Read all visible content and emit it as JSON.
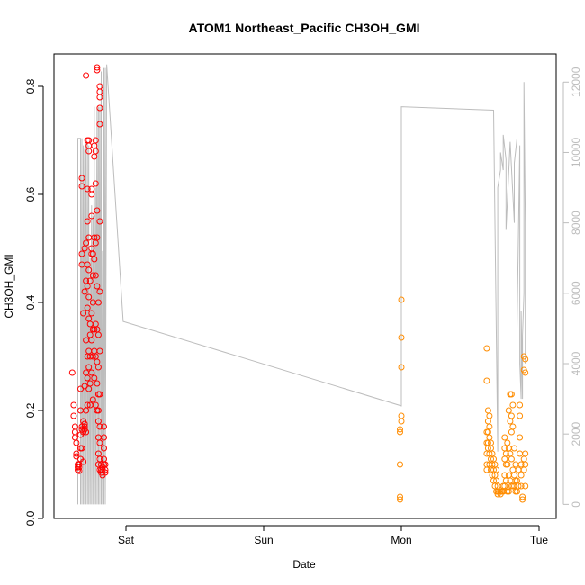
{
  "chart_data": {
    "type": "scatter",
    "title": "ATOM1 Northeast_Pacific CH3OH_GMI",
    "xlabel": "Date",
    "ylabel": "CH3OH_GMI",
    "x_ticks": [
      "Sat",
      "Sun",
      "Mon",
      "Tue"
    ],
    "ylim": [
      0,
      0.86
    ],
    "y_ticks": [
      0.0,
      0.2,
      0.4,
      0.6,
      0.8
    ],
    "y2lim": [
      -400,
      12800
    ],
    "y2_ticks": [
      0,
      2000,
      4000,
      6000,
      8000,
      10000,
      12000
    ],
    "grid": false,
    "colors": {
      "series_a": "#ff0000",
      "series_b": "#ff8c00",
      "altitude": "#bdbdbd"
    },
    "series": [
      {
        "color": "#ff0000",
        "points": [
          [
            -0.39,
            0.27
          ],
          [
            -0.38,
            0.21
          ],
          [
            -0.38,
            0.19
          ],
          [
            -0.37,
            0.17
          ],
          [
            -0.37,
            0.16
          ],
          [
            -0.37,
            0.15
          ],
          [
            -0.36,
            0.14
          ],
          [
            -0.36,
            0.12
          ],
          [
            -0.36,
            0.115
          ],
          [
            -0.35,
            0.1
          ],
          [
            -0.35,
            0.095
          ],
          [
            -0.35,
            0.09
          ],
          [
            -0.34,
            0.088
          ],
          [
            -0.34,
            0.095
          ],
          [
            -0.34,
            0.1
          ],
          [
            -0.33,
            0.11
          ],
          [
            -0.33,
            0.13
          ],
          [
            -0.33,
            0.155
          ],
          [
            -0.33,
            0.2
          ],
          [
            -0.33,
            0.24
          ],
          [
            -0.32,
            0.17
          ],
          [
            -0.32,
            0.165
          ],
          [
            -0.32,
            0.13
          ],
          [
            -0.31,
            0.38
          ],
          [
            -0.32,
            0.49
          ],
          [
            -0.32,
            0.47
          ],
          [
            -0.32,
            0.63
          ],
          [
            -0.32,
            0.615
          ],
          [
            -0.31,
            0.105
          ],
          [
            -0.31,
            0.16
          ],
          [
            -0.31,
            0.18
          ],
          [
            -0.3,
            0.165
          ],
          [
            -0.3,
            0.17
          ],
          [
            -0.3,
            0.175
          ],
          [
            -0.29,
            0.82
          ],
          [
            -0.3,
            0.245
          ],
          [
            -0.3,
            0.42
          ],
          [
            -0.3,
            0.5
          ],
          [
            -0.29,
            0.44
          ],
          [
            -0.29,
            0.51
          ],
          [
            -0.29,
            0.33
          ],
          [
            -0.29,
            0.27
          ],
          [
            -0.29,
            0.2
          ],
          [
            -0.29,
            0.16
          ],
          [
            -0.28,
            0.7
          ],
          [
            -0.28,
            0.61
          ],
          [
            -0.28,
            0.55
          ],
          [
            -0.28,
            0.47
          ],
          [
            -0.28,
            0.43
          ],
          [
            -0.28,
            0.39
          ],
          [
            -0.28,
            0.3
          ],
          [
            -0.28,
            0.26
          ],
          [
            -0.28,
            0.21
          ],
          [
            -0.27,
            0.7
          ],
          [
            -0.27,
            0.69
          ],
          [
            -0.27,
            0.68
          ],
          [
            -0.27,
            0.52
          ],
          [
            -0.27,
            0.46
          ],
          [
            -0.27,
            0.41
          ],
          [
            -0.27,
            0.37
          ],
          [
            -0.27,
            0.31
          ],
          [
            -0.27,
            0.28
          ],
          [
            -0.27,
            0.24
          ],
          [
            -0.26,
            0.44
          ],
          [
            -0.26,
            0.36
          ],
          [
            -0.26,
            0.34
          ],
          [
            -0.26,
            0.3
          ],
          [
            -0.26,
            0.25
          ],
          [
            -0.26,
            0.21
          ],
          [
            -0.25,
            0.61
          ],
          [
            -0.25,
            0.6
          ],
          [
            -0.25,
            0.56
          ],
          [
            -0.25,
            0.5
          ],
          [
            -0.25,
            0.49
          ],
          [
            -0.25,
            0.38
          ],
          [
            -0.25,
            0.33
          ],
          [
            -0.25,
            0.27
          ],
          [
            -0.24,
            0.49
          ],
          [
            -0.24,
            0.45
          ],
          [
            -0.24,
            0.4
          ],
          [
            -0.24,
            0.35
          ],
          [
            -0.24,
            0.3
          ],
          [
            -0.24,
            0.22
          ],
          [
            -0.23,
            0.69
          ],
          [
            -0.23,
            0.67
          ],
          [
            -0.23,
            0.52
          ],
          [
            -0.23,
            0.48
          ],
          [
            -0.23,
            0.35
          ],
          [
            -0.23,
            0.31
          ],
          [
            -0.23,
            0.26
          ],
          [
            -0.22,
            0.7
          ],
          [
            -0.22,
            0.68
          ],
          [
            -0.22,
            0.62
          ],
          [
            -0.22,
            0.51
          ],
          [
            -0.22,
            0.45
          ],
          [
            -0.22,
            0.36
          ],
          [
            -0.22,
            0.3
          ],
          [
            -0.22,
            0.21
          ],
          [
            -0.21,
            0.835
          ],
          [
            -0.21,
            0.83
          ],
          [
            -0.21,
            0.57
          ],
          [
            -0.21,
            0.52
          ],
          [
            -0.21,
            0.43
          ],
          [
            -0.21,
            0.35
          ],
          [
            -0.21,
            0.29
          ],
          [
            -0.21,
            0.25
          ],
          [
            -0.21,
            0.2
          ],
          [
            -0.2,
            0.4
          ],
          [
            -0.2,
            0.34
          ],
          [
            -0.2,
            0.28
          ],
          [
            -0.2,
            0.23
          ],
          [
            -0.2,
            0.2
          ],
          [
            -0.2,
            0.18
          ],
          [
            -0.2,
            0.15
          ],
          [
            -0.2,
            0.12
          ],
          [
            -0.2,
            0.1
          ],
          [
            -0.19,
            0.8
          ],
          [
            -0.19,
            0.79
          ],
          [
            -0.19,
            0.78
          ],
          [
            -0.19,
            0.76
          ],
          [
            -0.19,
            0.73
          ],
          [
            -0.19,
            0.55
          ],
          [
            -0.19,
            0.42
          ],
          [
            -0.19,
            0.31
          ],
          [
            -0.19,
            0.23
          ],
          [
            -0.19,
            0.17
          ],
          [
            -0.19,
            0.14
          ],
          [
            -0.19,
            0.11
          ],
          [
            -0.19,
            0.09
          ],
          [
            -0.18,
            0.1
          ],
          [
            -0.18,
            0.085
          ],
          [
            -0.18,
            0.09
          ],
          [
            -0.17,
            0.08
          ],
          [
            -0.17,
            0.09
          ],
          [
            -0.17,
            0.095
          ],
          [
            -0.16,
            0.1
          ],
          [
            -0.16,
            0.11
          ],
          [
            -0.16,
            0.13
          ],
          [
            -0.16,
            0.15
          ],
          [
            -0.16,
            0.17
          ],
          [
            -0.15,
            0.085
          ],
          [
            -0.15,
            0.09
          ],
          [
            -0.15,
            0.1
          ]
        ]
      },
      {
        "color": "#ff8c00",
        "points": [
          [
            2.0,
            0.405
          ],
          [
            2.0,
            0.335
          ],
          [
            2.0,
            0.28
          ],
          [
            2.0,
            0.19
          ],
          [
            2.0,
            0.18
          ],
          [
            1.99,
            0.165
          ],
          [
            1.99,
            0.16
          ],
          [
            1.99,
            0.1
          ],
          [
            1.99,
            0.04
          ],
          [
            1.99,
            0.035
          ],
          [
            2.62,
            0.315
          ],
          [
            2.62,
            0.255
          ],
          [
            2.62,
            0.16
          ],
          [
            2.62,
            0.14
          ],
          [
            2.62,
            0.12
          ],
          [
            2.62,
            0.1
          ],
          [
            2.62,
            0.09
          ],
          [
            2.63,
            0.2
          ],
          [
            2.63,
            0.18
          ],
          [
            2.63,
            0.16
          ],
          [
            2.63,
            0.14
          ],
          [
            2.63,
            0.13
          ],
          [
            2.64,
            0.19
          ],
          [
            2.64,
            0.17
          ],
          [
            2.64,
            0.15
          ],
          [
            2.64,
            0.12
          ],
          [
            2.64,
            0.1
          ],
          [
            2.65,
            0.14
          ],
          [
            2.65,
            0.13
          ],
          [
            2.65,
            0.11
          ],
          [
            2.65,
            0.09
          ],
          [
            2.66,
            0.12
          ],
          [
            2.66,
            0.1
          ],
          [
            2.66,
            0.08
          ],
          [
            2.67,
            0.11
          ],
          [
            2.67,
            0.09
          ],
          [
            2.67,
            0.07
          ],
          [
            2.68,
            0.1
          ],
          [
            2.68,
            0.08
          ],
          [
            2.68,
            0.06
          ],
          [
            2.69,
            0.09
          ],
          [
            2.69,
            0.07
          ],
          [
            2.69,
            0.05
          ],
          [
            2.7,
            0.06
          ],
          [
            2.7,
            0.05
          ],
          [
            2.7,
            0.045
          ],
          [
            2.71,
            0.05
          ],
          [
            2.72,
            0.045
          ],
          [
            2.72,
            0.05
          ],
          [
            2.73,
            0.05
          ],
          [
            2.74,
            0.06
          ],
          [
            2.74,
            0.05
          ],
          [
            2.75,
            0.15
          ],
          [
            2.75,
            0.13
          ],
          [
            2.75,
            0.11
          ],
          [
            2.75,
            0.08
          ],
          [
            2.75,
            0.06
          ],
          [
            2.76,
            0.12
          ],
          [
            2.76,
            0.1
          ],
          [
            2.76,
            0.07
          ],
          [
            2.77,
            0.14
          ],
          [
            2.77,
            0.1
          ],
          [
            2.77,
            0.05
          ],
          [
            2.78,
            0.2
          ],
          [
            2.78,
            0.13
          ],
          [
            2.78,
            0.08
          ],
          [
            2.78,
            0.05
          ],
          [
            2.79,
            0.23
          ],
          [
            2.79,
            0.18
          ],
          [
            2.79,
            0.12
          ],
          [
            2.79,
            0.07
          ],
          [
            2.8,
            0.23
          ],
          [
            2.8,
            0.19
          ],
          [
            2.8,
            0.16
          ],
          [
            2.8,
            0.11
          ],
          [
            2.8,
            0.06
          ],
          [
            2.81,
            0.21
          ],
          [
            2.81,
            0.17
          ],
          [
            2.81,
            0.09
          ],
          [
            2.81,
            0.06
          ],
          [
            2.82,
            0.13
          ],
          [
            2.82,
            0.08
          ],
          [
            2.82,
            0.06
          ],
          [
            2.83,
            0.1
          ],
          [
            2.83,
            0.07
          ],
          [
            2.83,
            0.05
          ],
          [
            2.84,
            0.07
          ],
          [
            2.84,
            0.05
          ],
          [
            2.85,
            0.09
          ],
          [
            2.85,
            0.06
          ],
          [
            2.86,
            0.21
          ],
          [
            2.86,
            0.19
          ],
          [
            2.86,
            0.15
          ],
          [
            2.86,
            0.12
          ],
          [
            2.87,
            0.1
          ],
          [
            2.87,
            0.08
          ],
          [
            2.87,
            0.06
          ],
          [
            2.88,
            0.04
          ],
          [
            2.88,
            0.035
          ],
          [
            2.89,
            0.3
          ],
          [
            2.89,
            0.275
          ],
          [
            2.89,
            0.11
          ],
          [
            2.89,
            0.09
          ],
          [
            2.9,
            0.295
          ],
          [
            2.9,
            0.27
          ],
          [
            2.9,
            0.12
          ],
          [
            2.9,
            0.1
          ],
          [
            2.9,
            0.06
          ]
        ]
      }
    ],
    "altitude_line": {
      "color": "#bdbdbd",
      "x": [
        -0.35,
        -0.35,
        -0.33,
        -0.33,
        -0.32,
        -0.32,
        -0.31,
        -0.31,
        -0.3,
        -0.3,
        -0.29,
        -0.29,
        -0.28,
        -0.28,
        -0.27,
        -0.27,
        -0.26,
        -0.26,
        -0.25,
        -0.25,
        -0.24,
        -0.24,
        -0.23,
        -0.23,
        -0.22,
        -0.22,
        -0.21,
        -0.21,
        -0.2,
        -0.2,
        -0.19,
        -0.19,
        -0.18,
        -0.18,
        -0.17,
        -0.17,
        -0.16,
        -0.16,
        -0.15,
        -0.15,
        -0.14,
        -0.02,
        2.0,
        2.0,
        2.0,
        2.0,
        2.67,
        2.7,
        2.7,
        2.72,
        2.72,
        2.74,
        2.74,
        2.76,
        2.76,
        2.79,
        2.79,
        2.82,
        2.82,
        2.84,
        2.84,
        2.86,
        2.86,
        2.87,
        2.87,
        2.88,
        2.88,
        2.89,
        2.89,
        2.9,
        2.9
      ],
      "y": [
        0,
        10400,
        10400,
        0,
        10400,
        0,
        10200,
        0,
        10100,
        0,
        10300,
        0,
        10300,
        0,
        10200,
        0,
        7000,
        0,
        8500,
        0,
        8200,
        0,
        11300,
        0,
        9000,
        0,
        11300,
        0,
        11300,
        0,
        11300,
        0,
        12300,
        0,
        7200,
        0,
        12400,
        0,
        12400,
        0,
        12500,
        5200,
        2800,
        2800,
        7000,
        11300,
        11200,
        1500,
        9000,
        9500,
        10000,
        9500,
        10500,
        9800,
        7800,
        10300,
        10300,
        8000,
        9700,
        10400,
        5000,
        10200,
        4000,
        3000,
        5500,
        3000,
        4800,
        6000,
        12000,
        8000,
        4000
      ]
    }
  }
}
